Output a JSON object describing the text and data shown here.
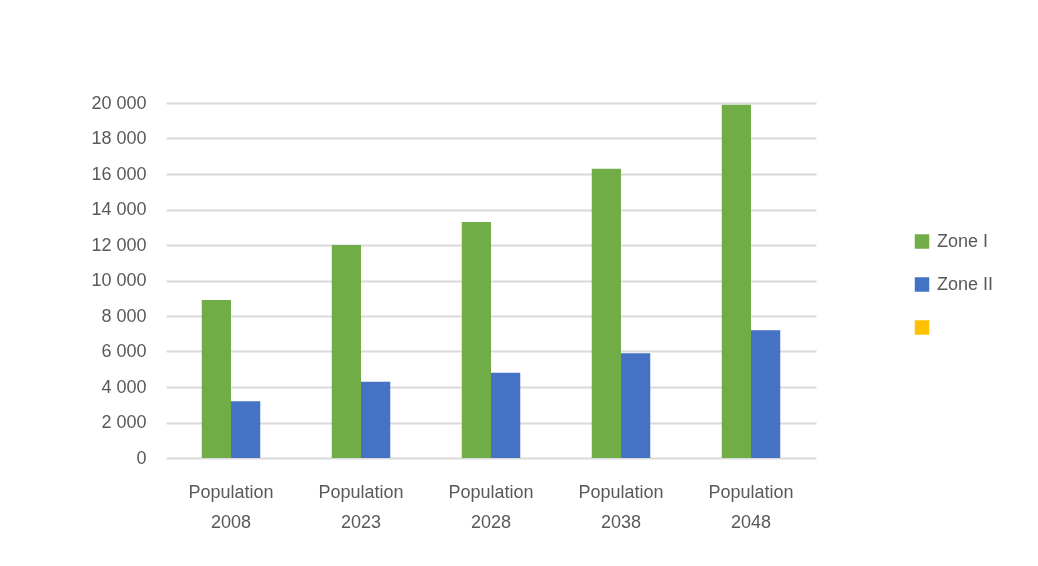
{
  "chart_data": {
    "type": "bar",
    "categories": [
      "Population 2008",
      "Population 2023",
      "Population 2028",
      "Population 2038",
      "Population 2048"
    ],
    "series": [
      {
        "name": "Zone I",
        "color": "#70ad47",
        "values": [
          8900,
          12000,
          13300,
          16300,
          19900
        ]
      },
      {
        "name": "Zone II",
        "color": "#4472c4",
        "values": [
          3200,
          4300,
          4800,
          5900,
          7200
        ]
      },
      {
        "color": "#ffc000",
        "values": [
          null,
          null,
          null,
          null,
          null
        ]
      }
    ],
    "ylim": [
      0,
      20000
    ],
    "yticks": [
      0,
      {
        "value": 2000,
        "label": "2 000"
      },
      {
        "value": 4000,
        "label": "4 000"
      },
      {
        "value": 6000,
        "label": "6 000"
      },
      {
        "value": 8000,
        "label": "8 000"
      },
      {
        "value": 10000,
        "label": "10 000"
      },
      {
        "value": 12000,
        "label": "12 000"
      },
      {
        "value": 14000,
        "label": "14 000"
      },
      {
        "value": 16000,
        "label": "16 000"
      },
      {
        "value": 18000,
        "label": "18 000"
      },
      {
        "value": 20000,
        "label": "20 000"
      }
    ],
    "grid": "y",
    "legend": "right"
  }
}
